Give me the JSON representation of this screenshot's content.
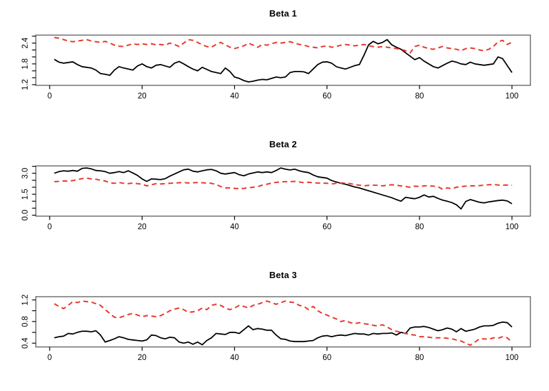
{
  "figure": {
    "background": "#ffffff",
    "box_color": "#4d4d4d",
    "tick_color": "#000000",
    "n_panels": 3
  },
  "chart_data": [
    {
      "type": "line",
      "title": "Beta 1",
      "xlabel": "",
      "ylabel": "",
      "x_description": "index 1..100",
      "xlim": [
        -3,
        104
      ],
      "xtick_values": [
        0,
        20,
        40,
        60,
        80,
        100
      ],
      "xtick_labels": [
        "0",
        "20",
        "40",
        "60",
        "80",
        "100"
      ],
      "ylim": [
        1.18,
        2.63
      ],
      "ytick_values": [
        1.2,
        1.4,
        1.6,
        1.8,
        2.0,
        2.2,
        2.4,
        2.6
      ],
      "ytick_labels": [
        "1.2",
        "",
        "",
        "1.8",
        "",
        "",
        "2.4",
        ""
      ],
      "grid": false,
      "legend": "none",
      "series": [
        {
          "name": "solid_black",
          "color": "#000000",
          "style": "solid",
          "values": [
            1.93,
            1.85,
            1.82,
            1.84,
            1.86,
            1.78,
            1.72,
            1.7,
            1.68,
            1.62,
            1.52,
            1.5,
            1.47,
            1.62,
            1.72,
            1.68,
            1.65,
            1.62,
            1.74,
            1.8,
            1.72,
            1.68,
            1.76,
            1.78,
            1.74,
            1.7,
            1.82,
            1.87,
            1.8,
            1.72,
            1.65,
            1.6,
            1.7,
            1.64,
            1.58,
            1.55,
            1.52,
            1.68,
            1.58,
            1.42,
            1.38,
            1.32,
            1.28,
            1.3,
            1.33,
            1.35,
            1.34,
            1.38,
            1.42,
            1.4,
            1.42,
            1.55,
            1.58,
            1.58,
            1.57,
            1.52,
            1.65,
            1.78,
            1.85,
            1.86,
            1.82,
            1.72,
            1.68,
            1.65,
            1.7,
            1.75,
            1.78,
            2.05,
            2.35,
            2.45,
            2.38,
            2.42,
            2.5,
            2.35,
            2.28,
            2.22,
            2.12,
            2.02,
            1.92,
            1.98,
            1.88,
            1.8,
            1.72,
            1.68,
            1.75,
            1.82,
            1.88,
            1.85,
            1.8,
            1.78,
            1.85,
            1.8,
            1.78,
            1.76,
            1.78,
            1.8,
            2.0,
            1.95,
            1.75,
            1.55
          ]
        },
        {
          "name": "dashed_red",
          "color": "#e8372c",
          "style": "dashed",
          "values": [
            2.56,
            2.54,
            2.5,
            2.46,
            2.44,
            2.46,
            2.48,
            2.5,
            2.46,
            2.44,
            2.42,
            2.45,
            2.4,
            2.34,
            2.31,
            2.3,
            2.34,
            2.38,
            2.36,
            2.38,
            2.36,
            2.38,
            2.35,
            2.36,
            2.34,
            2.4,
            2.36,
            2.3,
            2.4,
            2.5,
            2.48,
            2.42,
            2.35,
            2.3,
            2.28,
            2.36,
            2.42,
            2.35,
            2.28,
            2.24,
            2.28,
            2.32,
            2.4,
            2.34,
            2.28,
            2.36,
            2.34,
            2.38,
            2.42,
            2.4,
            2.42,
            2.44,
            2.4,
            2.36,
            2.34,
            2.3,
            2.28,
            2.26,
            2.3,
            2.32,
            2.28,
            2.3,
            2.34,
            2.36,
            2.34,
            2.32,
            2.34,
            2.36,
            2.32,
            2.3,
            2.28,
            2.3,
            2.28,
            2.26,
            2.24,
            2.22,
            2.18,
            2.12,
            2.3,
            2.34,
            2.28,
            2.24,
            2.22,
            2.26,
            2.3,
            2.26,
            2.24,
            2.22,
            2.18,
            2.24,
            2.26,
            2.24,
            2.2,
            2.18,
            2.22,
            2.3,
            2.44,
            2.48,
            2.36,
            2.42
          ]
        }
      ]
    },
    {
      "type": "line",
      "title": "Beta 2",
      "xlabel": "",
      "ylabel": "",
      "x_description": "index 1..100",
      "xlim": [
        -3,
        104
      ],
      "xtick_values": [
        0,
        20,
        40,
        60,
        80,
        100
      ],
      "xtick_labels": [
        "0",
        "20",
        "40",
        "60",
        "80",
        "100"
      ],
      "ylim": [
        -0.07,
        3.53
      ],
      "ytick_values": [
        0.0,
        0.5,
        1.0,
        1.5,
        2.0,
        2.5,
        3.0,
        3.5
      ],
      "ytick_labels": [
        "0.0",
        "",
        "",
        "1.5",
        "",
        "",
        "3.0",
        ""
      ],
      "grid": false,
      "legend": "none",
      "series": [
        {
          "name": "solid_black",
          "color": "#000000",
          "style": "solid",
          "values": [
            3.0,
            3.12,
            3.18,
            3.15,
            3.2,
            3.15,
            3.35,
            3.38,
            3.32,
            3.2,
            3.18,
            3.12,
            3.0,
            3.05,
            3.12,
            3.05,
            3.18,
            3.02,
            2.85,
            2.6,
            2.42,
            2.6,
            2.58,
            2.55,
            2.62,
            2.8,
            2.95,
            3.1,
            3.25,
            3.3,
            3.15,
            3.1,
            3.18,
            3.25,
            3.28,
            3.18,
            3.0,
            2.95,
            3.0,
            3.05,
            2.9,
            2.82,
            2.95,
            3.02,
            3.1,
            3.05,
            3.1,
            3.05,
            3.2,
            3.38,
            3.3,
            3.24,
            3.3,
            3.18,
            3.1,
            3.05,
            2.88,
            2.75,
            2.7,
            2.65,
            2.48,
            2.38,
            2.28,
            2.22,
            2.12,
            2.02,
            1.95,
            1.85,
            1.75,
            1.65,
            1.55,
            1.45,
            1.35,
            1.25,
            1.12,
            1.0,
            1.28,
            1.22,
            1.18,
            1.28,
            1.45,
            1.3,
            1.35,
            1.2,
            1.08,
            1.0,
            0.9,
            0.75,
            0.45,
            0.98,
            1.12,
            1.02,
            0.92,
            0.88,
            0.95,
            1.0,
            1.05,
            1.08,
            1.02,
            0.82
          ]
        },
        {
          "name": "dashed_red",
          "color": "#e8372c",
          "style": "dashed",
          "values": [
            2.4,
            2.42,
            2.45,
            2.44,
            2.48,
            2.55,
            2.62,
            2.65,
            2.6,
            2.58,
            2.5,
            2.45,
            2.32,
            2.28,
            2.34,
            2.28,
            2.26,
            2.3,
            2.26,
            2.22,
            2.1,
            2.18,
            2.26,
            2.24,
            2.26,
            2.28,
            2.3,
            2.32,
            2.34,
            2.3,
            2.32,
            2.34,
            2.32,
            2.3,
            2.28,
            2.2,
            2.05,
            1.95,
            1.95,
            1.92,
            1.9,
            1.92,
            1.96,
            2.0,
            2.05,
            2.15,
            2.22,
            2.3,
            2.35,
            2.38,
            2.4,
            2.4,
            2.42,
            2.38,
            2.32,
            2.36,
            2.32,
            2.3,
            2.3,
            2.28,
            2.24,
            2.28,
            2.3,
            2.3,
            2.26,
            2.2,
            2.15,
            2.1,
            2.14,
            2.15,
            2.14,
            2.1,
            2.14,
            2.18,
            2.14,
            2.1,
            2.05,
            2.0,
            2.08,
            2.05,
            2.1,
            2.1,
            2.08,
            2.04,
            1.85,
            1.95,
            1.9,
            2.0,
            2.05,
            2.08,
            2.1,
            2.1,
            2.12,
            2.15,
            2.18,
            2.2,
            2.16,
            2.15,
            2.16,
            2.15
          ]
        }
      ]
    },
    {
      "type": "line",
      "title": "Beta 3",
      "xlabel": "",
      "ylabel": "",
      "x_description": "index 1..100",
      "xlim": [
        -3,
        104
      ],
      "xtick_values": [
        0,
        20,
        40,
        60,
        80,
        100
      ],
      "xtick_labels": [
        "0",
        "20",
        "40",
        "60",
        "80",
        "100"
      ],
      "ylim": [
        0.33,
        1.26
      ],
      "ytick_values": [
        0.4,
        0.6,
        0.8,
        1.0,
        1.2
      ],
      "ytick_labels": [
        "0.4",
        "",
        "0.8",
        "",
        "1.2"
      ],
      "grid": false,
      "legend": "none",
      "series": [
        {
          "name": "solid_black",
          "color": "#000000",
          "style": "solid",
          "values": [
            0.5,
            0.52,
            0.53,
            0.58,
            0.57,
            0.6,
            0.62,
            0.62,
            0.61,
            0.63,
            0.55,
            0.42,
            0.45,
            0.48,
            0.52,
            0.5,
            0.47,
            0.46,
            0.45,
            0.44,
            0.46,
            0.55,
            0.54,
            0.5,
            0.48,
            0.51,
            0.5,
            0.42,
            0.4,
            0.42,
            0.38,
            0.42,
            0.37,
            0.45,
            0.5,
            0.58,
            0.57,
            0.56,
            0.6,
            0.6,
            0.58,
            0.65,
            0.72,
            0.65,
            0.67,
            0.66,
            0.64,
            0.64,
            0.55,
            0.48,
            0.47,
            0.44,
            0.43,
            0.43,
            0.43,
            0.44,
            0.45,
            0.5,
            0.53,
            0.54,
            0.52,
            0.54,
            0.55,
            0.54,
            0.56,
            0.58,
            0.57,
            0.57,
            0.55,
            0.58,
            0.57,
            0.58,
            0.58,
            0.59,
            0.55,
            0.6,
            0.58,
            0.68,
            0.7,
            0.7,
            0.71,
            0.69,
            0.66,
            0.63,
            0.65,
            0.68,
            0.66,
            0.61,
            0.67,
            0.62,
            0.64,
            0.66,
            0.7,
            0.72,
            0.72,
            0.73,
            0.77,
            0.79,
            0.78,
            0.7
          ]
        },
        {
          "name": "dashed_red",
          "color": "#e8372c",
          "style": "dashed",
          "values": [
            1.13,
            1.08,
            1.04,
            1.1,
            1.17,
            1.15,
            1.18,
            1.17,
            1.16,
            1.13,
            1.1,
            1.02,
            0.95,
            0.88,
            0.87,
            0.9,
            0.93,
            0.95,
            0.92,
            0.89,
            0.91,
            0.9,
            0.89,
            0.91,
            0.95,
            1.0,
            1.03,
            1.05,
            1.02,
            0.97,
            0.98,
            1.0,
            1.05,
            1.02,
            1.1,
            1.12,
            1.1,
            1.05,
            1.02,
            1.05,
            1.1,
            1.08,
            1.05,
            1.1,
            1.12,
            1.15,
            1.18,
            1.15,
            1.12,
            1.15,
            1.18,
            1.16,
            1.15,
            1.1,
            1.08,
            1.02,
            1.08,
            1.0,
            0.95,
            0.92,
            0.88,
            0.85,
            0.8,
            0.82,
            0.78,
            0.76,
            0.78,
            0.76,
            0.75,
            0.73,
            0.72,
            0.74,
            0.7,
            0.65,
            0.62,
            0.6,
            0.58,
            0.56,
            0.55,
            0.52,
            0.52,
            0.51,
            0.5,
            0.5,
            0.5,
            0.49,
            0.48,
            0.46,
            0.44,
            0.4,
            0.36,
            0.42,
            0.48,
            0.48,
            0.47,
            0.5,
            0.49,
            0.52,
            0.5,
            0.42
          ]
        }
      ]
    }
  ]
}
